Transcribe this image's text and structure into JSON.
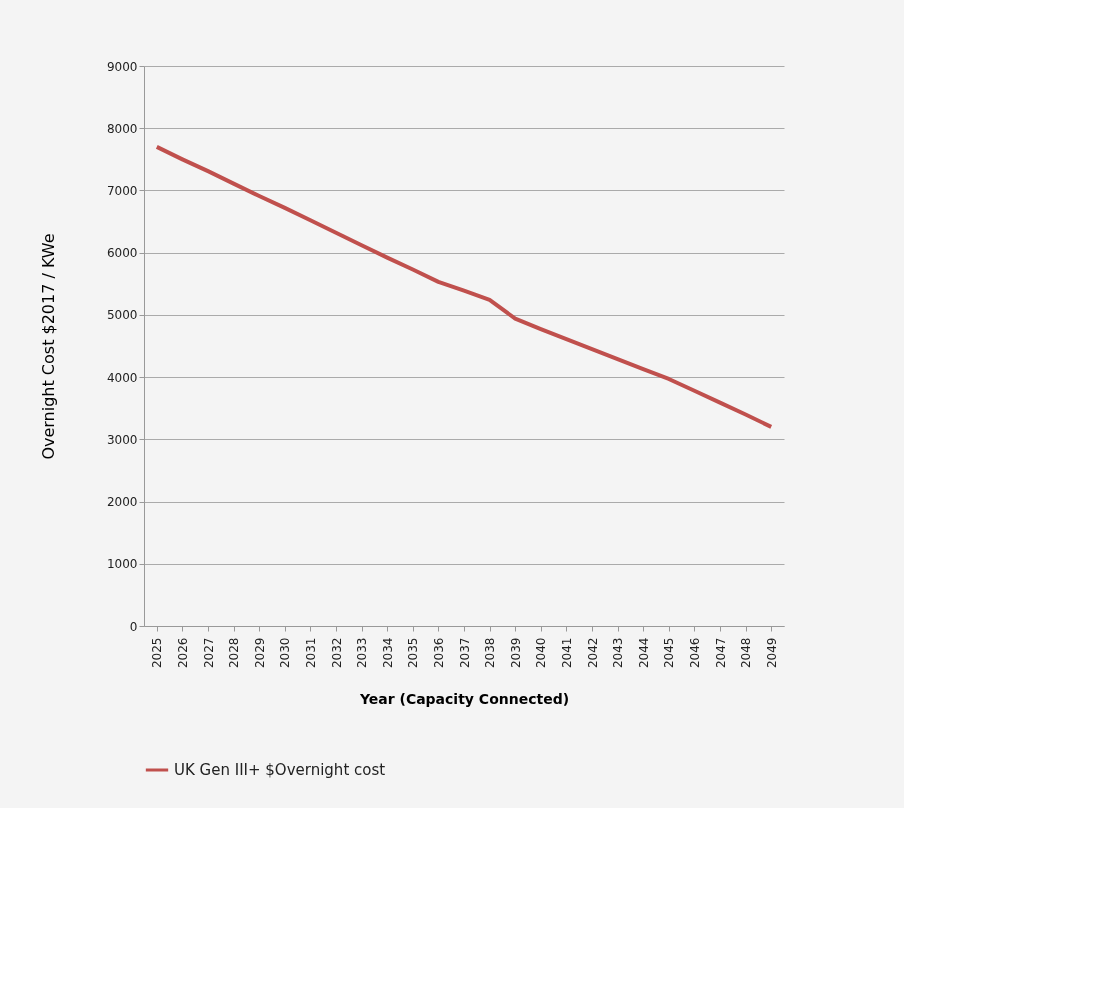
{
  "chart_data": {
    "type": "line",
    "xlabel": "Year (Capacity Connected)",
    "ylabel": "Overnight Cost $2017 / KWe",
    "categories": [
      "2025",
      "2026",
      "2027",
      "2028",
      "2029",
      "2030",
      "2031",
      "2032",
      "2033",
      "2034",
      "2035",
      "2036",
      "2037",
      "2038",
      "2039",
      "2040",
      "2041",
      "2042",
      "2043",
      "2044",
      "2045",
      "2046",
      "2047",
      "2048",
      "2049"
    ],
    "series": [
      {
        "name": "UK Gen III+ $Overnight cost",
        "color": "#c0504d",
        "values": [
          7700,
          7500,
          7310,
          7110,
          6910,
          6720,
          6520,
          6320,
          6120,
          5920,
          5730,
          5530,
          5390,
          5240,
          4940,
          4770,
          4610,
          4450,
          4290,
          4130,
          3970,
          3780,
          3590,
          3400,
          3200
        ]
      }
    ],
    "ylim": [
      0,
      9000
    ],
    "yticks": [
      0,
      1000,
      2000,
      3000,
      4000,
      5000,
      6000,
      7000,
      8000,
      9000
    ],
    "grid": "y",
    "legend": "bottom",
    "marker": "none",
    "line_style": "solid"
  }
}
